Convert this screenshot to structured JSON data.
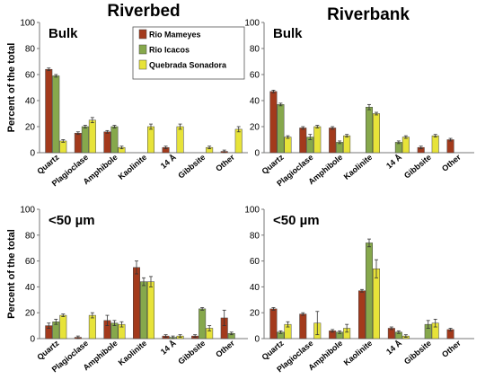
{
  "columns": [
    "Riverbed",
    "Riverbank"
  ],
  "colors": {
    "Rio Mameyes": "#a33a1c",
    "Rio Icacos": "#86a84c",
    "Quebrada Sonadora": "#e7e339"
  },
  "chart_data": [
    {
      "type": "bar",
      "title": "Bulk",
      "ylabel": "Percent of the total",
      "ylim": [
        0,
        100
      ],
      "yticks": [
        0,
        20,
        40,
        60,
        80,
        100
      ],
      "categories": [
        "Quartz",
        "Plagioclase",
        "Amphibole",
        "Kaolinite",
        "14 Å",
        "Gibbsite",
        "Other"
      ],
      "legend": "top-center",
      "series": [
        {
          "name": "Rio Mameyes",
          "values": [
            64,
            15,
            16,
            0,
            4,
            0,
            1
          ],
          "errors": [
            1,
            1,
            1,
            0,
            1,
            0,
            1
          ]
        },
        {
          "name": "Rio Icacos",
          "values": [
            59,
            20,
            20,
            0,
            0,
            0,
            0
          ],
          "errors": [
            1,
            1,
            1,
            0,
            0,
            0,
            0
          ]
        },
        {
          "name": "Quebrada Sonadora",
          "values": [
            9,
            25,
            4,
            20,
            20,
            4,
            18
          ],
          "errors": [
            1,
            2,
            1,
            2,
            2,
            1,
            2
          ]
        }
      ]
    },
    {
      "type": "bar",
      "title": "Bulk",
      "ylim": [
        0,
        100
      ],
      "yticks": [
        0,
        20,
        40,
        60,
        80,
        100
      ],
      "categories": [
        "Quartz",
        "Plagioclase",
        "Amphibole",
        "Kaolinite",
        "14 Å",
        "Gibbsite",
        "Other"
      ],
      "series": [
        {
          "name": "Rio Mameyes",
          "values": [
            47,
            19,
            19,
            0,
            0,
            4,
            10
          ],
          "errors": [
            1,
            1,
            1,
            0,
            0,
            1,
            1
          ]
        },
        {
          "name": "Rio Icacos",
          "values": [
            37,
            12,
            8,
            35,
            8,
            0,
            0
          ],
          "errors": [
            1,
            2,
            1,
            2,
            1,
            0,
            0
          ]
        },
        {
          "name": "Quebrada Sonadora",
          "values": [
            12,
            20,
            13,
            30,
            12,
            13,
            0
          ],
          "errors": [
            1,
            1,
            1,
            1,
            1,
            1,
            0
          ]
        }
      ]
    },
    {
      "type": "bar",
      "title": "<50 µm",
      "ylabel": "Percent of the total",
      "ylim": [
        0,
        100
      ],
      "yticks": [
        0,
        20,
        40,
        60,
        80,
        100
      ],
      "categories": [
        "Quartz",
        "Plagioclase",
        "Amphibole",
        "Kaolinite",
        "14 Å",
        "Gibbsite",
        "Other"
      ],
      "series": [
        {
          "name": "Rio Mameyes",
          "values": [
            10,
            1,
            14,
            55,
            2,
            2,
            16
          ],
          "errors": [
            2,
            1,
            4,
            5,
            1,
            1,
            6
          ]
        },
        {
          "name": "Rio Icacos",
          "values": [
            13,
            0,
            12,
            44,
            1,
            23,
            4
          ],
          "errors": [
            2,
            0,
            2,
            3,
            1,
            1,
            1
          ]
        },
        {
          "name": "Quebrada Sonadora",
          "values": [
            18,
            18,
            11,
            44,
            2,
            8,
            0
          ],
          "errors": [
            1,
            2,
            2,
            4,
            1,
            2,
            0
          ]
        }
      ]
    },
    {
      "type": "bar",
      "title": "<50 µm",
      "ylim": [
        0,
        100
      ],
      "yticks": [
        0,
        20,
        40,
        60,
        80,
        100
      ],
      "categories": [
        "Quartz",
        "Plagioclase",
        "Amphibole",
        "Kaolinite",
        "14 Å",
        "Gibbsite",
        "Other"
      ],
      "series": [
        {
          "name": "Rio Mameyes",
          "values": [
            23,
            19,
            6,
            37,
            8,
            0,
            7
          ],
          "errors": [
            1,
            1,
            1,
            1,
            1,
            0,
            1
          ]
        },
        {
          "name": "Rio Icacos",
          "values": [
            5,
            0,
            5,
            74,
            5,
            11,
            0
          ],
          "errors": [
            1,
            0,
            1,
            3,
            1,
            3,
            0
          ]
        },
        {
          "name": "Quebrada Sonadora",
          "values": [
            11,
            12,
            8,
            54,
            2,
            12,
            0
          ],
          "errors": [
            2,
            9,
            3,
            7,
            1,
            3,
            0
          ]
        }
      ]
    }
  ]
}
